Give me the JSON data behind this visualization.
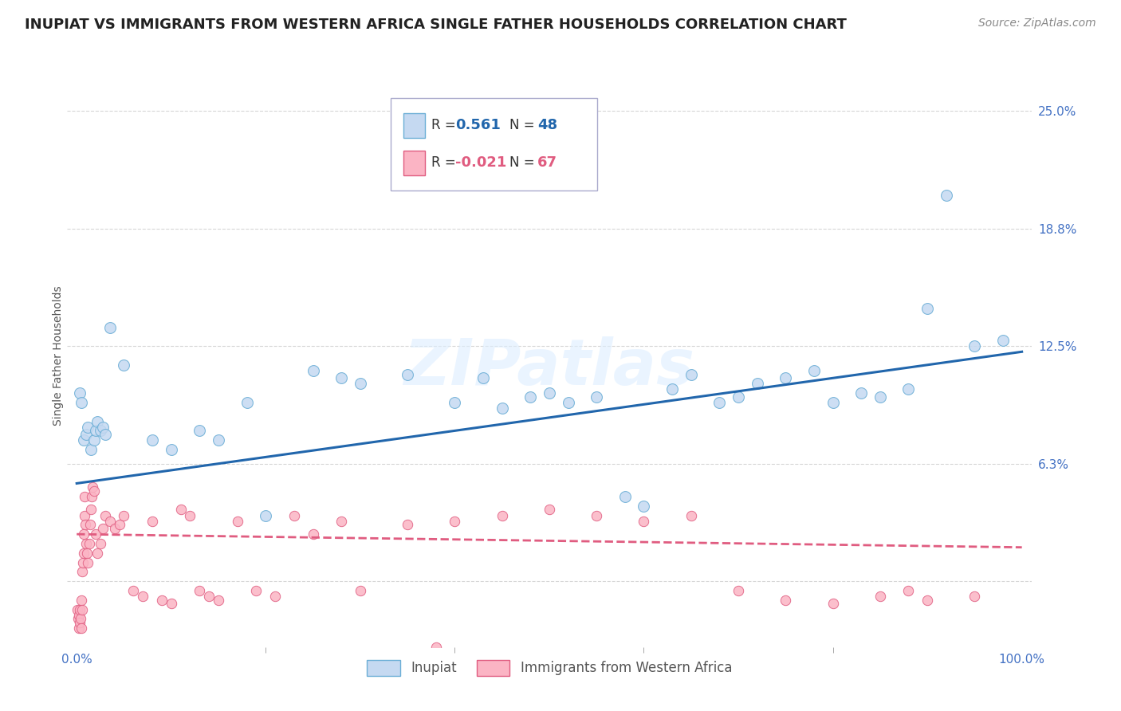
{
  "title": "INUPIAT VS IMMIGRANTS FROM WESTERN AFRICA SINGLE FATHER HOUSEHOLDS CORRELATION CHART",
  "source": "Source: ZipAtlas.com",
  "ylabel": "Single Father Households",
  "ytick_values": [
    0.0,
    6.25,
    12.5,
    18.75,
    25.0
  ],
  "ytick_labels": [
    "",
    "6.3%",
    "12.5%",
    "18.8%",
    "25.0%"
  ],
  "xlim": [
    -1.0,
    101.0
  ],
  "ylim": [
    -3.5,
    27.5
  ],
  "watermark_text": "ZIPatlas",
  "background_color": "#ffffff",
  "grid_color": "#cccccc",
  "title_fontsize": 13,
  "tick_label_color": "#4472c4",
  "series": [
    {
      "name": "Inupiat",
      "color": "#c5d9f1",
      "edge_color": "#6baed6",
      "R": 0.561,
      "N": 48,
      "line_color": "#2166ac",
      "x": [
        0.3,
        0.5,
        0.7,
        1.0,
        1.2,
        1.5,
        1.8,
        2.0,
        2.2,
        2.5,
        2.8,
        3.0,
        3.5,
        5.0,
        8.0,
        10.0,
        13.0,
        15.0,
        18.0,
        20.0,
        25.0,
        28.0,
        30.0,
        35.0,
        40.0,
        43.0,
        45.0,
        48.0,
        50.0,
        52.0,
        55.0,
        58.0,
        60.0,
        63.0,
        65.0,
        68.0,
        70.0,
        72.0,
        75.0,
        78.0,
        80.0,
        83.0,
        85.0,
        88.0,
        90.0,
        92.0,
        95.0,
        98.0
      ],
      "y": [
        10.0,
        9.5,
        7.5,
        7.8,
        8.2,
        7.0,
        7.5,
        8.0,
        8.5,
        8.0,
        8.2,
        7.8,
        13.5,
        11.5,
        7.5,
        7.0,
        8.0,
        7.5,
        9.5,
        3.5,
        11.2,
        10.8,
        10.5,
        11.0,
        9.5,
        10.8,
        9.2,
        9.8,
        10.0,
        9.5,
        9.8,
        4.5,
        4.0,
        10.2,
        11.0,
        9.5,
        9.8,
        10.5,
        10.8,
        11.2,
        9.5,
        10.0,
        9.8,
        10.2,
        14.5,
        20.5,
        12.5,
        12.8
      ],
      "trend_x": [
        0.0,
        100.0
      ],
      "trend_y": [
        5.2,
        12.2
      ]
    },
    {
      "name": "Immigrants from Western Africa",
      "color": "#fbb4c4",
      "edge_color": "#e05c80",
      "R": -0.021,
      "N": 67,
      "line_color": "#e05c80",
      "x": [
        0.1,
        0.15,
        0.2,
        0.25,
        0.3,
        0.35,
        0.4,
        0.45,
        0.5,
        0.55,
        0.6,
        0.65,
        0.7,
        0.75,
        0.8,
        0.85,
        0.9,
        1.0,
        1.1,
        1.2,
        1.3,
        1.4,
        1.5,
        1.6,
        1.7,
        1.8,
        2.0,
        2.2,
        2.5,
        2.8,
        3.0,
        3.5,
        4.0,
        4.5,
        5.0,
        6.0,
        7.0,
        8.0,
        9.0,
        10.0,
        11.0,
        12.0,
        13.0,
        14.0,
        15.0,
        17.0,
        19.0,
        21.0,
        23.0,
        25.0,
        28.0,
        30.0,
        35.0,
        40.0,
        45.0,
        50.0,
        55.0,
        60.0,
        65.0,
        70.0,
        75.0,
        80.0,
        85.0,
        88.0,
        90.0,
        95.0,
        38.0
      ],
      "y": [
        -1.5,
        -2.0,
        -2.5,
        -1.8,
        -2.2,
        -1.5,
        -2.0,
        -2.5,
        -1.0,
        -1.5,
        0.5,
        1.0,
        1.5,
        2.5,
        3.5,
        4.5,
        3.0,
        2.0,
        1.5,
        1.0,
        2.0,
        3.0,
        3.8,
        4.5,
        5.0,
        4.8,
        2.5,
        1.5,
        2.0,
        2.8,
        3.5,
        3.2,
        2.8,
        3.0,
        3.5,
        -0.5,
        -0.8,
        3.2,
        -1.0,
        -1.2,
        3.8,
        3.5,
        -0.5,
        -0.8,
        -1.0,
        3.2,
        -0.5,
        -0.8,
        3.5,
        2.5,
        3.2,
        -0.5,
        3.0,
        3.2,
        3.5,
        3.8,
        3.5,
        3.2,
        3.5,
        -0.5,
        -1.0,
        -1.2,
        -0.8,
        -0.5,
        -1.0,
        -0.8,
        -3.5
      ],
      "trend_x": [
        0.0,
        100.0
      ],
      "trend_y": [
        2.5,
        1.8
      ]
    }
  ]
}
